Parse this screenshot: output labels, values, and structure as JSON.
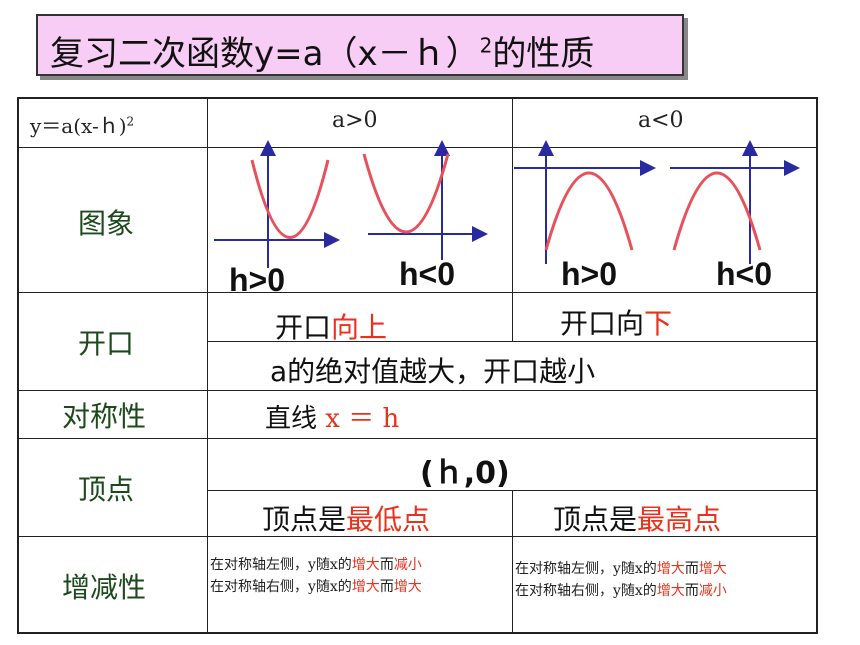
{
  "title": {
    "main": "复习二次函数y=a（x－ｈ）",
    "sup": "2",
    "tail": "的性质"
  },
  "table": {
    "header": {
      "formula": "y＝a(x-ｈ)",
      "formula_sup": "2",
      "col_pos": "a>0",
      "col_neg": "a<0"
    },
    "rows": {
      "graph": "图象",
      "opening": "开口",
      "symmetry": "对称性",
      "vertex": "顶点",
      "monotonic": "增减性"
    },
    "graph_labels": {
      "p1": "h>0",
      "p2": "h<0",
      "n1": "h>0",
      "n2": "h<0"
    },
    "opening": {
      "pos_prefix": "开口",
      "pos_red": "向上",
      "neg_prefix": "开口向",
      "neg_red": "下",
      "shared": "a的绝对值越大，开口越小"
    },
    "symmetry": {
      "prefix": "直线",
      "red": "x ＝ h"
    },
    "vertex": {
      "coord": "(ｈ,0)",
      "pos_prefix": "顶点是",
      "pos_red": "最低点",
      "neg_prefix": "顶点是",
      "neg_red": "最高点"
    },
    "monotonic": {
      "pos_l1_a": "在对称轴左侧，y随x的",
      "pos_l1_r1": "增大",
      "pos_l1_b": "而",
      "pos_l1_r2": "减小",
      "pos_l2_a": "在对称轴右侧，y随x的",
      "pos_l2_r1": "增大",
      "pos_l2_b": "而",
      "pos_l2_r2": "增大",
      "neg_l1_a": "在对称轴左侧，y随x的",
      "neg_l1_r1": "增大",
      "neg_l1_b": "而",
      "neg_l1_r2": "增大",
      "neg_l2_a": "在对称轴右侧，y随x的",
      "neg_l2_r1": "增大",
      "neg_l2_b": "而",
      "neg_l2_r2": "减小"
    }
  },
  "colors": {
    "title_bg": "#f7ccf5",
    "curve": "#e8505a",
    "axis": "#2a2aa0",
    "accent": "#e8321e",
    "rowhead": "#1c4a1c"
  }
}
